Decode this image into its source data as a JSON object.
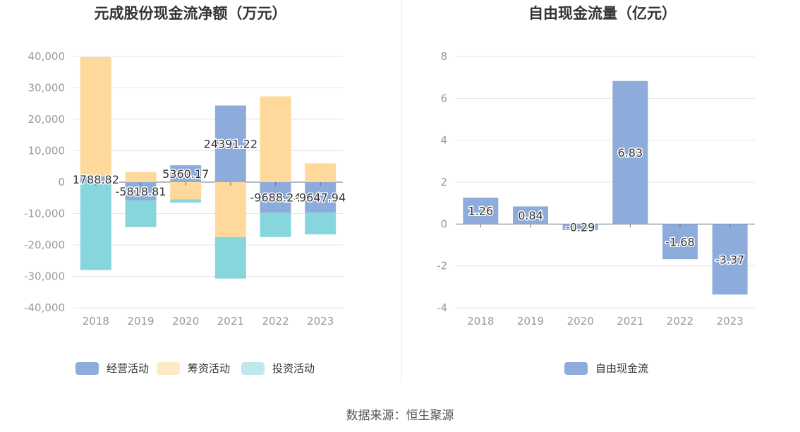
{
  "source_text": "数据来源：恒生聚源",
  "chart_data": [
    {
      "type": "bar",
      "stacked": true,
      "title": "元成股份现金流净额（万元）",
      "categories": [
        "2018",
        "2019",
        "2020",
        "2021",
        "2022",
        "2023"
      ],
      "ylim": [
        -40000,
        40000
      ],
      "yticks": [
        40000,
        30000,
        20000,
        10000,
        0,
        -10000,
        -20000,
        -30000,
        -40000
      ],
      "ytick_labels": [
        "40,000",
        "30,000",
        "20,000",
        "10,000",
        "0",
        "-10,000",
        "-20,000",
        "-30,000",
        "-40,000"
      ],
      "grid": true,
      "legend_position": "bottom",
      "series": [
        {
          "name": "经营活动",
          "color": "#8eacdb",
          "values": [
            1788.82,
            -5818.81,
            5360.17,
            24391.22,
            -9688.24,
            -9647.94
          ],
          "labels": [
            "1788.82",
            "-5818.81",
            "5360.17",
            "24391.22",
            "-9688.24",
            "-9647.94"
          ]
        },
        {
          "name": "筹资活动",
          "color": "#fed99b",
          "values": [
            38000,
            3200,
            -5500,
            -17500,
            27300,
            6000
          ]
        },
        {
          "name": "投资活动",
          "color": "#88d6dd",
          "values": [
            -28000,
            -8500,
            -1000,
            -13200,
            -7800,
            -7000
          ]
        }
      ]
    },
    {
      "type": "bar",
      "title": "自由现金流量（亿元）",
      "categories": [
        "2018",
        "2019",
        "2020",
        "2021",
        "2022",
        "2023"
      ],
      "ylim": [
        -4,
        8
      ],
      "yticks": [
        8,
        6,
        4,
        2,
        0,
        -2,
        -4
      ],
      "ytick_labels": [
        "8",
        "6",
        "4",
        "2",
        "0",
        "-2",
        "-4"
      ],
      "grid": true,
      "legend_position": "bottom",
      "series": [
        {
          "name": "自由现金流",
          "color": "#8eacdb",
          "values": [
            1.26,
            0.84,
            -0.29,
            6.83,
            -1.68,
            -3.37
          ],
          "labels": [
            "1.26",
            "0.84",
            "-0.29",
            "6.83",
            "-1.68",
            "-3.37"
          ]
        }
      ]
    }
  ]
}
